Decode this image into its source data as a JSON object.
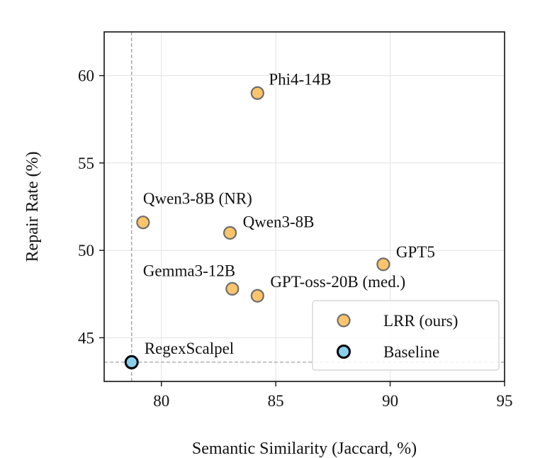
{
  "chart_data": {
    "type": "scatter",
    "xlabel": "Semantic Similarity (Jaccard, %)",
    "ylabel": "Repair Rate (%)",
    "xlim": [
      77.5,
      95
    ],
    "ylim": [
      42.5,
      62.5
    ],
    "xticks": [
      80,
      85,
      90,
      95
    ],
    "yticks": [
      45,
      50,
      55,
      60
    ],
    "grid": true,
    "legend_position": "bottom-right",
    "series": [
      {
        "name": "LRR (ours)",
        "color": "#fdc46b",
        "edge_color": "#6e6e6e",
        "points": [
          {
            "label": "Phi4-14B",
            "x": 84.2,
            "y": 59.0
          },
          {
            "label": "Qwen3-8B (NR)",
            "x": 79.2,
            "y": 51.6
          },
          {
            "label": "Qwen3-8B",
            "x": 83.0,
            "y": 51.0
          },
          {
            "label": "GPT5",
            "x": 89.7,
            "y": 49.2
          },
          {
            "label": "Gemma3-12B",
            "x": 83.1,
            "y": 47.8
          },
          {
            "label": "GPT-oss-20B (med.)",
            "x": 84.2,
            "y": 47.4
          }
        ]
      },
      {
        "name": "Baseline",
        "color": "#89cfee",
        "edge_color": "#000000",
        "points": [
          {
            "label": "RegexScalpel",
            "x": 78.7,
            "y": 43.6
          }
        ]
      }
    ],
    "reference_lines": {
      "x": 78.7,
      "y": 43.6
    }
  }
}
